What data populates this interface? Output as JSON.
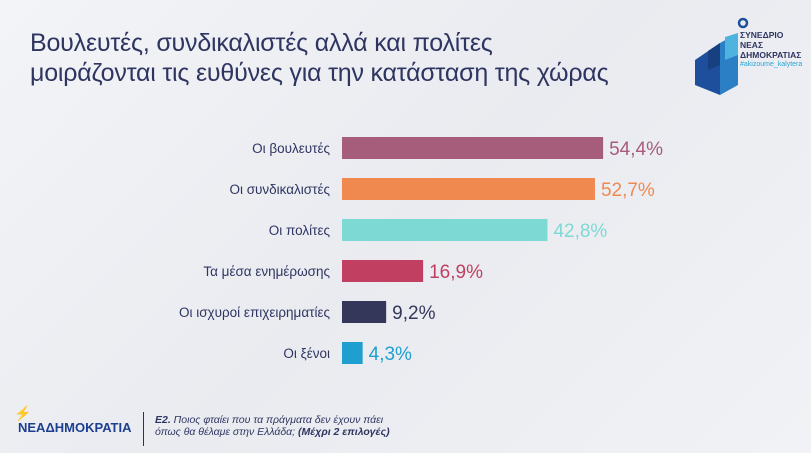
{
  "title_line1": "Βουλευτές, συνδικαλιστές αλλά και πολίτες",
  "title_line2": "μοιράζονται τις ευθύνες για την κατάσταση της χώρας",
  "logo": {
    "line1": "ΣΥΝΕΔΡΙΟ",
    "line2": "ΝΕΑΣ",
    "line3": "ΔΗΜΟΚΡΑΤΙΑΣ",
    "tag": "#akizoume_kalytera"
  },
  "footer": {
    "brand": "ΝΕΑΔΗΜΟΚΡΑΤΙΑ",
    "question_code": "Ε2.",
    "question_line1": " Ποιος φταίει που τα πράγματα δεν έχουν πάει",
    "question_line2": "όπως θα θέλαμε στην Ελλάδα; ",
    "question_note": "(Μέχρι 2 επιλογές)"
  },
  "chart_data": {
    "type": "bar",
    "orientation": "horizontal",
    "title": "Βουλευτές, συνδικαλιστές αλλά και πολίτες μοιράζονται τις ευθύνες για την κατάσταση της χώρας",
    "categories": [
      "Οι βουλευτές",
      "Οι συνδικαλιστές",
      "Οι πολίτες",
      "Τα μέσα ενημέρωσης",
      "Οι ισχυροί επιχειρηματίες",
      "Οι ξένοι"
    ],
    "values": [
      54.4,
      52.7,
      42.8,
      16.9,
      9.2,
      4.3
    ],
    "labels": [
      "54,4%",
      "52,7%",
      "42,8%",
      "16,9%",
      "9,2%",
      "4,3%"
    ],
    "colors": [
      "#a65c7b",
      "#f0894f",
      "#7dd9d3",
      "#c13f61",
      "#34375a",
      "#1f9fcf"
    ],
    "xlim": [
      0,
      100
    ],
    "grid": false
  }
}
